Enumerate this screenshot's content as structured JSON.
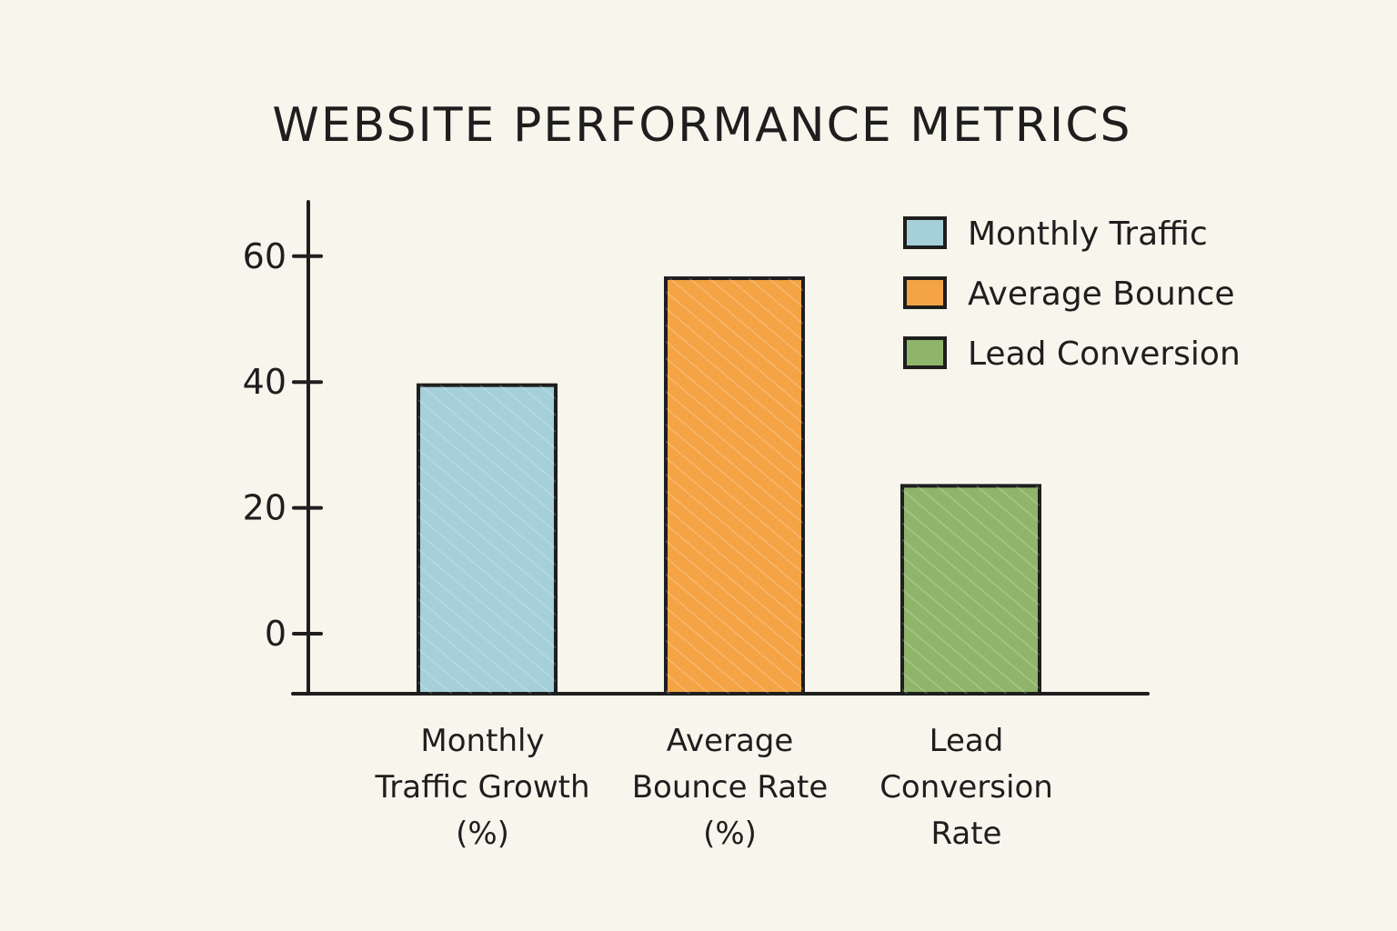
{
  "chart_data": {
    "type": "bar",
    "title": "WEBSITE PERFORMANCE METRICS",
    "categories": [
      [
        "Monthly",
        "Traffic Growth",
        "(%)"
      ],
      [
        "Average",
        "Bounce Rate",
        "(%)"
      ],
      [
        "Lead",
        "Conversion",
        "Rate"
      ]
    ],
    "values": [
      39.5,
      56.5,
      23.5
    ],
    "colors": [
      "#a5cfd9",
      "#f4a445",
      "#8fb56a"
    ],
    "yticks": [
      0,
      20,
      40,
      60
    ],
    "ylim": [
      -9.5,
      68
    ],
    "grid": false,
    "legend": {
      "placement": "top-right",
      "entries": [
        {
          "label": "Monthly Traffic",
          "color": "#a5cfd9"
        },
        {
          "label": "Average Bounce",
          "color": "#f4a445"
        },
        {
          "label": "Lead Conversion",
          "color": "#8fb56a"
        }
      ]
    }
  }
}
